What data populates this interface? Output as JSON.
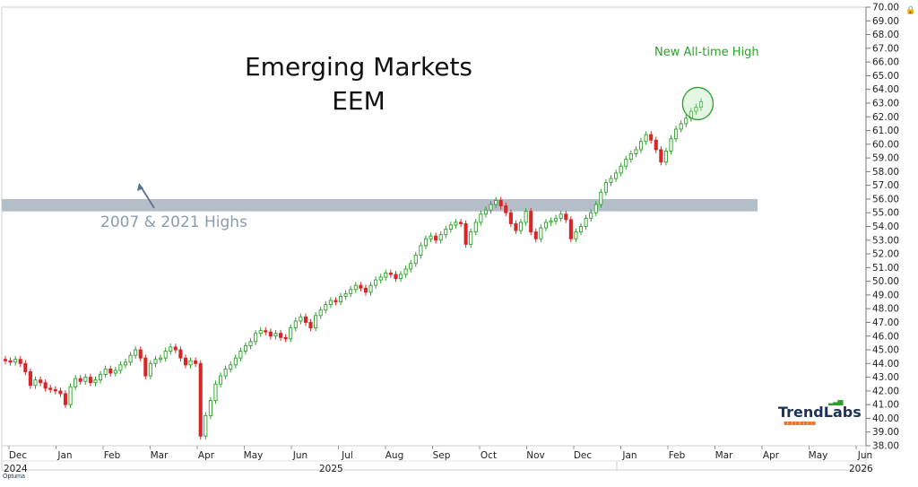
{
  "chart_data": {
    "type": "candlestick",
    "title": "Emerging Markets",
    "subtitle": "EEM",
    "ylim": [
      38,
      70
    ],
    "y_ticks": [
      38,
      39,
      40,
      41,
      42,
      43,
      44,
      45,
      46,
      47,
      48,
      49,
      50,
      51,
      52,
      53,
      54,
      55,
      56,
      57,
      58,
      59,
      60,
      61,
      62,
      63,
      64,
      65,
      66,
      67,
      68,
      69,
      70
    ],
    "x_month_labels": [
      "Dec",
      "Jan",
      "Feb",
      "Mar",
      "Apr",
      "May",
      "Jun",
      "Jul",
      "Aug",
      "Sep",
      "Oct",
      "Nov",
      "Dec",
      "Jan",
      "Feb",
      "Mar",
      "Apr",
      "May",
      "Jun"
    ],
    "x_year_labels": [
      "2024",
      "2025",
      "2026"
    ],
    "resistance_band": {
      "low": 55.1,
      "high": 56.0,
      "label": "2007 & 2021 Highs",
      "color": "#b4bec8"
    },
    "annotation": {
      "label": "New All-time High",
      "color": "#2ca02c"
    },
    "closes": [
      44.2,
      44.1,
      44.3,
      44.0,
      43.4,
      42.4,
      42.8,
      42.6,
      42.2,
      42.1,
      42.0,
      41.8,
      41.0,
      42.3,
      42.9,
      42.7,
      43.0,
      42.6,
      42.8,
      43.2,
      43.6,
      43.3,
      43.5,
      43.9,
      44.1,
      44.6,
      45.0,
      44.4,
      43.1,
      44.0,
      44.3,
      44.4,
      44.9,
      45.2,
      45.0,
      44.4,
      43.9,
      44.2,
      44.0,
      38.7,
      40.2,
      41.3,
      42.5,
      43.1,
      43.6,
      43.9,
      44.4,
      44.9,
      45.3,
      45.6,
      46.2,
      46.4,
      46.3,
      46.0,
      46.2,
      45.9,
      45.8,
      46.6,
      47.1,
      47.4,
      47.0,
      46.6,
      47.5,
      47.9,
      48.3,
      48.6,
      48.5,
      48.9,
      49.1,
      49.4,
      49.7,
      49.5,
      49.2,
      49.7,
      50.1,
      50.3,
      50.6,
      50.5,
      50.2,
      50.5,
      50.9,
      51.3,
      51.9,
      52.6,
      53.1,
      53.3,
      53.0,
      53.4,
      53.8,
      54.1,
      54.3,
      54.2,
      52.7,
      53.6,
      54.3,
      54.9,
      55.2,
      55.6,
      55.9,
      55.5,
      55.0,
      54.2,
      53.7,
      54.3,
      55.1,
      53.6,
      53.1,
      53.9,
      54.3,
      54.4,
      54.6,
      54.9,
      54.5,
      53.1,
      53.6,
      54.0,
      54.6,
      55.0,
      55.6,
      56.5,
      57.2,
      57.5,
      57.9,
      58.4,
      58.9,
      59.3,
      59.6,
      60.2,
      60.7,
      60.3,
      59.6,
      58.7,
      59.5,
      60.4,
      61.1,
      61.5,
      61.9,
      62.4,
      62.7,
      63.1
    ],
    "colors": {
      "up": "#2ca02c",
      "down": "#d62728"
    }
  },
  "logo": {
    "name": "TrendLabs"
  },
  "footer": {
    "brand": "Optuma"
  }
}
